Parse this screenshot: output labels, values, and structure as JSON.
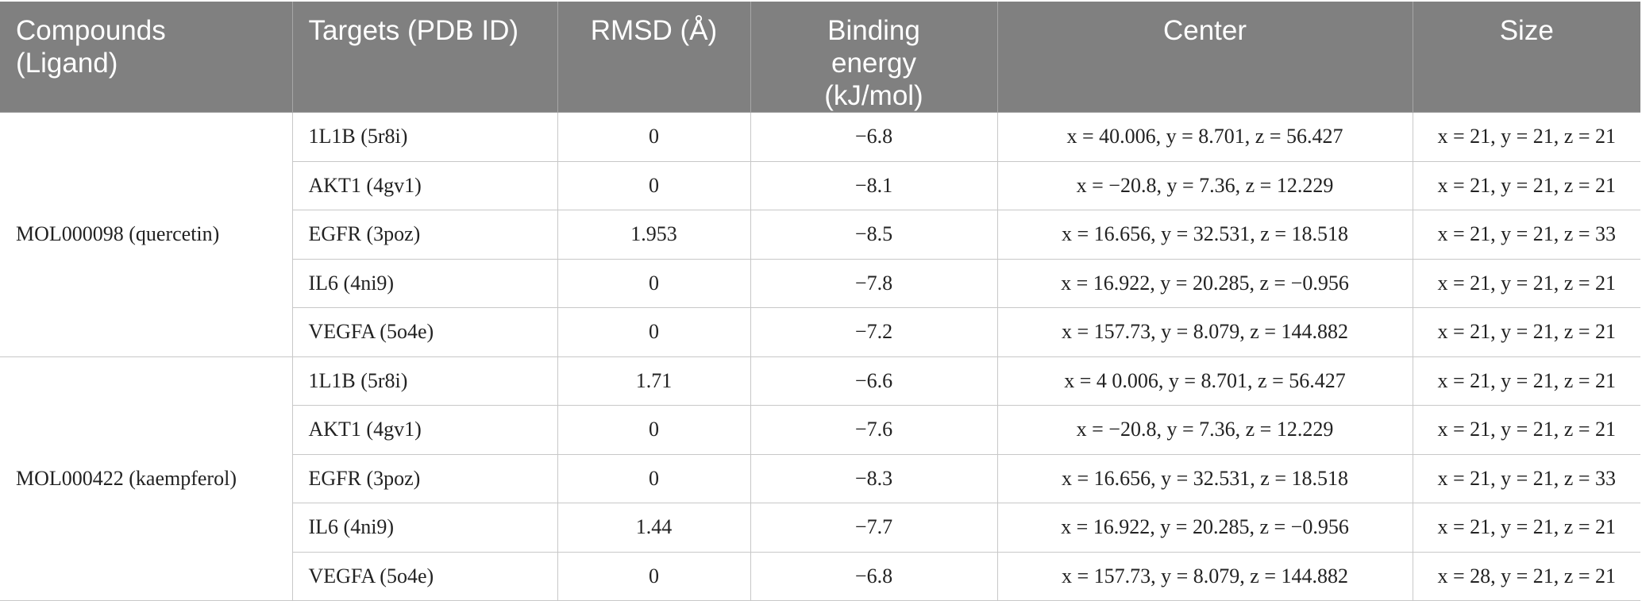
{
  "table": {
    "headers": [
      "Compounds (Ligand)",
      "Targets (PDB ID)",
      "RMSD (Å)",
      "Binding energy (kJ/mol)",
      "Center",
      "Size"
    ],
    "groups": [
      {
        "compound": "MOL000098 (quercetin)",
        "rows": [
          {
            "target": "1L1B (5r8i)",
            "rmsd": "0",
            "energy": "−6.8",
            "center": "x = 40.006, y = 8.701, z = 56.427",
            "size": "x = 21, y = 21, z = 21"
          },
          {
            "target": "AKT1 (4gv1)",
            "rmsd": "0",
            "energy": "−8.1",
            "center": "x = −20.8, y = 7.36, z = 12.229",
            "size": "x = 21, y = 21, z = 21"
          },
          {
            "target": "EGFR (3poz)",
            "rmsd": "1.953",
            "energy": "−8.5",
            "center": "x = 16.656, y = 32.531, z = 18.518",
            "size": "x = 21, y = 21, z = 33"
          },
          {
            "target": "IL6 (4ni9)",
            "rmsd": "0",
            "energy": "−7.8",
            "center": "x = 16.922, y = 20.285, z = −0.956",
            "size": "x = 21, y = 21, z = 21"
          },
          {
            "target": "VEGFA (5o4e)",
            "rmsd": "0",
            "energy": "−7.2",
            "center": "x = 157.73, y = 8.079, z = 144.882",
            "size": "x = 21, y = 21, z = 21"
          }
        ]
      },
      {
        "compound": "MOL000422 (kaempferol)",
        "rows": [
          {
            "target": "1L1B (5r8i)",
            "rmsd": "1.71",
            "energy": "−6.6",
            "center": "x = 4 0.006, y = 8.701, z = 56.427",
            "size": "x = 21, y = 21, z = 21"
          },
          {
            "target": "AKT1 (4gv1)",
            "rmsd": "0",
            "energy": "−7.6",
            "center": "x = −20.8, y = 7.36, z = 12.229",
            "size": "x = 21, y = 21, z = 21"
          },
          {
            "target": "EGFR (3poz)",
            "rmsd": "0",
            "energy": "−8.3",
            "center": "x = 16.656, y = 32.531, z = 18.518",
            "size": "x = 21, y = 21, z = 33"
          },
          {
            "target": "IL6 (4ni9)",
            "rmsd": "1.44",
            "energy": "−7.7",
            "center": "x = 16.922, y = 20.285, z = −0.956",
            "size": "x = 21, y = 21, z = 21"
          },
          {
            "target": "VEGFA (5o4e)",
            "rmsd": "0",
            "energy": "−6.8",
            "center": "x = 157.73, y = 8.079, z = 144.882",
            "size": "x = 28, y = 21, z = 21"
          }
        ]
      }
    ]
  }
}
